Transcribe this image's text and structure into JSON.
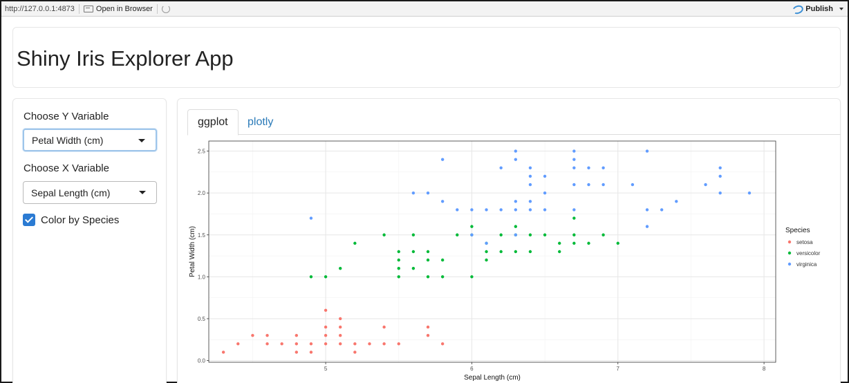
{
  "toolbar": {
    "url": "http://127.0.0.1:4873",
    "open_browser_label": "Open in Browser",
    "publish_label": "Publish"
  },
  "app": {
    "title": "Shiny Iris Explorer App"
  },
  "sidebar": {
    "y_label": "Choose Y Variable",
    "y_value": "Petal Width (cm)",
    "x_label": "Choose X Variable",
    "x_value": "Sepal Length (cm)",
    "color_label": "Color by Species",
    "color_checked": true
  },
  "tabs": [
    {
      "label": "ggplot",
      "active": true
    },
    {
      "label": "plotly",
      "active": false
    }
  ],
  "chart_data": {
    "type": "scatter",
    "xlabel": "Sepal Length (cm)",
    "ylabel": "Petal Width (cm)",
    "xlim": [
      4.2,
      8.08
    ],
    "ylim": [
      -0.02,
      2.62
    ],
    "xticks": [
      5,
      6,
      7,
      8
    ],
    "yticks": [
      0.0,
      0.5,
      1.0,
      1.5,
      2.0,
      2.5
    ],
    "ytick_labels": [
      "0.0",
      "0.5",
      "1.0",
      "1.5",
      "2.0",
      "2.5"
    ],
    "grid": true,
    "legend_title": "Species",
    "legend_position": "right",
    "series": [
      {
        "name": "setosa",
        "color": "#F8766D",
        "points": [
          [
            4.3,
            0.1
          ],
          [
            4.4,
            0.2
          ],
          [
            4.5,
            0.3
          ],
          [
            4.6,
            0.3
          ],
          [
            4.6,
            0.2
          ],
          [
            4.7,
            0.2
          ],
          [
            4.8,
            0.3
          ],
          [
            4.8,
            0.2
          ],
          [
            4.8,
            0.1
          ],
          [
            4.9,
            0.2
          ],
          [
            4.9,
            0.1
          ],
          [
            5.0,
            0.6
          ],
          [
            5.0,
            0.4
          ],
          [
            5.0,
            0.3
          ],
          [
            5.0,
            0.2
          ],
          [
            5.1,
            0.5
          ],
          [
            5.1,
            0.4
          ],
          [
            5.1,
            0.3
          ],
          [
            5.1,
            0.2
          ],
          [
            5.2,
            0.2
          ],
          [
            5.2,
            0.1
          ],
          [
            5.3,
            0.2
          ],
          [
            5.4,
            0.4
          ],
          [
            5.4,
            0.2
          ],
          [
            5.5,
            0.2
          ],
          [
            5.7,
            0.4
          ],
          [
            5.7,
            0.3
          ],
          [
            5.8,
            0.2
          ]
        ]
      },
      {
        "name": "versicolor",
        "color": "#00BA38",
        "points": [
          [
            4.9,
            1.0
          ],
          [
            5.0,
            1.0
          ],
          [
            5.1,
            1.1
          ],
          [
            5.2,
            1.4
          ],
          [
            5.4,
            1.5
          ],
          [
            5.5,
            1.3
          ],
          [
            5.5,
            1.2
          ],
          [
            5.5,
            1.1
          ],
          [
            5.5,
            1.0
          ],
          [
            5.6,
            1.5
          ],
          [
            5.6,
            1.3
          ],
          [
            5.6,
            1.1
          ],
          [
            5.7,
            1.3
          ],
          [
            5.7,
            1.2
          ],
          [
            5.7,
            1.0
          ],
          [
            5.8,
            1.2
          ],
          [
            5.8,
            1.0
          ],
          [
            5.9,
            1.5
          ],
          [
            6.0,
            1.6
          ],
          [
            6.0,
            1.5
          ],
          [
            6.0,
            1.0
          ],
          [
            6.1,
            1.4
          ],
          [
            6.1,
            1.3
          ],
          [
            6.1,
            1.2
          ],
          [
            6.2,
            1.5
          ],
          [
            6.2,
            1.3
          ],
          [
            6.3,
            1.6
          ],
          [
            6.3,
            1.5
          ],
          [
            6.3,
            1.3
          ],
          [
            6.4,
            1.5
          ],
          [
            6.4,
            1.3
          ],
          [
            6.5,
            1.5
          ],
          [
            6.6,
            1.4
          ],
          [
            6.6,
            1.3
          ],
          [
            6.7,
            1.7
          ],
          [
            6.7,
            1.5
          ],
          [
            6.7,
            1.4
          ],
          [
            6.8,
            1.4
          ],
          [
            6.9,
            1.5
          ],
          [
            7.0,
            1.4
          ]
        ]
      },
      {
        "name": "virginica",
        "color": "#619CFF",
        "points": [
          [
            4.9,
            1.7
          ],
          [
            5.6,
            2.0
          ],
          [
            5.7,
            2.0
          ],
          [
            5.8,
            2.4
          ],
          [
            5.8,
            1.9
          ],
          [
            5.9,
            1.8
          ],
          [
            6.0,
            1.8
          ],
          [
            6.0,
            1.5
          ],
          [
            6.1,
            1.8
          ],
          [
            6.1,
            1.4
          ],
          [
            6.2,
            2.3
          ],
          [
            6.2,
            1.8
          ],
          [
            6.3,
            2.5
          ],
          [
            6.3,
            2.4
          ],
          [
            6.3,
            1.9
          ],
          [
            6.3,
            1.8
          ],
          [
            6.3,
            1.5
          ],
          [
            6.4,
            2.3
          ],
          [
            6.4,
            2.2
          ],
          [
            6.4,
            2.1
          ],
          [
            6.4,
            1.9
          ],
          [
            6.4,
            1.8
          ],
          [
            6.5,
            2.2
          ],
          [
            6.5,
            2.0
          ],
          [
            6.5,
            1.8
          ],
          [
            6.7,
            2.5
          ],
          [
            6.7,
            2.4
          ],
          [
            6.7,
            2.3
          ],
          [
            6.7,
            2.1
          ],
          [
            6.7,
            1.8
          ],
          [
            6.8,
            2.3
          ],
          [
            6.8,
            2.1
          ],
          [
            6.9,
            2.3
          ],
          [
            6.9,
            2.1
          ],
          [
            7.1,
            2.1
          ],
          [
            7.2,
            2.5
          ],
          [
            7.2,
            1.8
          ],
          [
            7.2,
            1.6
          ],
          [
            7.3,
            1.8
          ],
          [
            7.4,
            1.9
          ],
          [
            7.6,
            2.1
          ],
          [
            7.7,
            2.3
          ],
          [
            7.7,
            2.2
          ],
          [
            7.7,
            2.0
          ],
          [
            7.9,
            2.0
          ]
        ]
      }
    ]
  }
}
